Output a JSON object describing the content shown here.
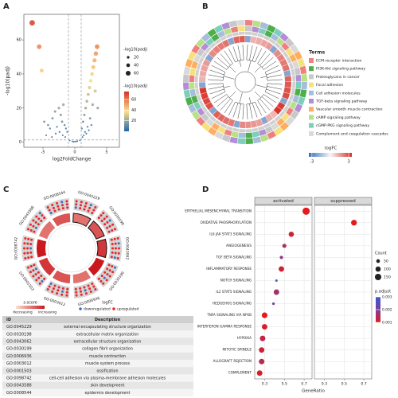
{
  "chart_data": [
    {
      "panel": "A",
      "type": "scatter",
      "x_label": "log2FoldChange",
      "y_label": "-log10(padj)",
      "xlim": [
        -8,
        7
      ],
      "ylim": [
        -3,
        75
      ],
      "xticks": [
        -5,
        0,
        5
      ],
      "yticks": [
        0,
        20,
        40,
        60
      ],
      "vlines": [
        -1,
        1
      ],
      "hline": 1.3,
      "color_scale": [
        "#2166ac",
        "#fee08b",
        "#d73027"
      ],
      "x": [
        -6.7,
        -5.6,
        -5.2,
        -4.8,
        -4.2,
        -3.9,
        -3.5,
        -3.1,
        -2.8,
        -2.5,
        -2.2,
        -2.0,
        -1.8,
        -1.6,
        -1.4,
        -1.2,
        -3.0,
        -2.4,
        -1.9,
        -1.5,
        -4.5,
        -3.6,
        1.1,
        1.3,
        1.5,
        1.7,
        1.9,
        2.1,
        2.3,
        2.5,
        2.7,
        2.9,
        3.1,
        3.3,
        3.5,
        3.2,
        2.8,
        2.4,
        2.0,
        1.6,
        1.2,
        3.6,
        1.4,
        1.8,
        2.2,
        2.6,
        -0.8,
        -0.4,
        0,
        0.4,
        0.8,
        -0.2,
        0.2
      ],
      "y": [
        70,
        56,
        42,
        12,
        10,
        8,
        14,
        18,
        9,
        20,
        16,
        12,
        22,
        10,
        8,
        6,
        5,
        6,
        4,
        3,
        4,
        3,
        8,
        12,
        16,
        20,
        24,
        28,
        32,
        36,
        40,
        44,
        48,
        52,
        56,
        30,
        22,
        14,
        9,
        6,
        3,
        20,
        4,
        5,
        7,
        10,
        1,
        0.5,
        0.3,
        0.6,
        1.1,
        0.2,
        0.4
      ],
      "size_legend": {
        "title": "-log10(padj)",
        "values": [
          20,
          40,
          60
        ]
      },
      "color_legend": {
        "title": "-log10(padj)",
        "values": [
          20,
          40,
          60
        ]
      }
    },
    {
      "panel": "B",
      "type": "circular-dendrogram",
      "legend_title": "Terms",
      "terms": [
        "ECM-receptor interaction",
        "PI3K-Akt signaling pathway",
        "Proteoglycans in cancer",
        "Focal adhesion",
        "Cell adhesion molecules",
        "TGF-beta signaling pathway",
        "Vascular smooth muscle contraction",
        "cAMP signaling pathway",
        "cGMP-PKG signaling pathway",
        "Complement and coagulation cascades"
      ],
      "colors": [
        "#f08080",
        "#4daf4a",
        "#c8c8c8",
        "#f6e27a",
        "#a6bddb",
        "#b38dd6",
        "#fdae61",
        "#b8e186",
        "#7fcdbb",
        "#d9d9d9"
      ],
      "logfc_legend": {
        "title": "logFC",
        "ticks": [
          -3,
          3
        ],
        "lim": [
          -3.5,
          3.5
        ],
        "colors": [
          "#3b6fb6",
          "#f7f7f7",
          "#d73027"
        ]
      }
    },
    {
      "panel": "C",
      "type": "go-circle",
      "ids": [
        "GO:0045229",
        "GO:0030198",
        "GO:0043062",
        "GO:0030199",
        "GO:0006936",
        "GO:0003012",
        "GO:0001503",
        "GO:0098742",
        "GO:0043588",
        "GO:0008544"
      ],
      "descriptions": [
        "external encapsulating structure organization",
        "extracellular matrix organization",
        "extracellular structure organization",
        "collagen fibril organization",
        "muscle contraction",
        "muscle system process",
        "ossification",
        "cell-cell adhesion via plasma-membrane adhesion molecules",
        "skin development",
        "epidermis development"
      ],
      "table_header": [
        "ID",
        "Description"
      ],
      "zscore_legend": {
        "title": "z-score",
        "labels": [
          "decreasing",
          "increasing"
        ],
        "colors": [
          "#fde0d2",
          "#cb181d"
        ]
      },
      "logfc_legend": {
        "title": "logFC",
        "labels": [
          "downregulated",
          "upregulated"
        ]
      },
      "down_color": "#3a6fc4",
      "up_color": "#e8262a"
    },
    {
      "panel": "D",
      "type": "dot",
      "x_label": "GeneRatio",
      "categories": [
        "EPITHELIAL MESENCHYMAL TRANSITION",
        "OXIDATIVE PHOSPHORYLATION",
        "IL6 JAK STAT3 SIGNALING",
        "ANGIOGENESIS",
        "TGF BETA SIGNALING",
        "INFLAMMATORY RESPONSE",
        "NOTCH SIGNALING",
        "IL2 STAT5 SIGNALING",
        "HEDGEHOG SIGNALING",
        "TNFA SIGNALING VIA NFKB",
        "INTERFERON GAMMA RESPONSE",
        "HYPOXIA",
        "MITOTIC SPINDLE",
        "ALLOGRAFT REJECTION",
        "COMPLEMENT"
      ],
      "xlim": [
        0.2,
        0.78
      ],
      "xticks": [
        0.3,
        0.5,
        0.7
      ],
      "series": [
        {
          "name": "activated",
          "values": [
            0.72,
            null,
            0.57,
            0.5,
            0.47,
            0.47,
            0.42,
            0.42,
            0.39,
            0.3,
            0.3,
            0.28,
            0.27,
            0.27,
            0.25
          ],
          "counts": [
            190,
            null,
            100,
            60,
            40,
            110,
            20,
            110,
            25,
            115,
            110,
            110,
            110,
            110,
            110
          ],
          "padj": [
            0.001,
            null,
            0.0012,
            0.0015,
            0.0018,
            0.0012,
            0.003,
            0.0016,
            0.002,
            0.001,
            0.0011,
            0.0013,
            0.0012,
            0.0014,
            0.0011
          ]
        },
        {
          "name": "suppressed",
          "values": [
            null,
            0.6,
            null,
            null,
            null,
            null,
            null,
            null,
            null,
            null,
            null,
            null,
            null,
            null,
            null
          ],
          "counts": [
            null,
            120,
            null,
            null,
            null,
            null,
            null,
            null,
            null,
            null,
            null,
            null,
            null,
            null,
            null
          ],
          "padj": [
            null,
            0.001,
            null,
            null,
            null,
            null,
            null,
            null,
            null,
            null,
            null,
            null,
            null,
            null,
            null
          ]
        }
      ],
      "count_legend": {
        "title": "Count",
        "values": [
          50,
          100,
          150
        ]
      },
      "padj_legend": {
        "title": "p.adjust",
        "ticks": [
          0.001,
          0.002,
          0.003
        ]
      },
      "color_scale": [
        "#e41a1c",
        "#7a3fa0",
        "#3a5bcc"
      ]
    }
  ]
}
